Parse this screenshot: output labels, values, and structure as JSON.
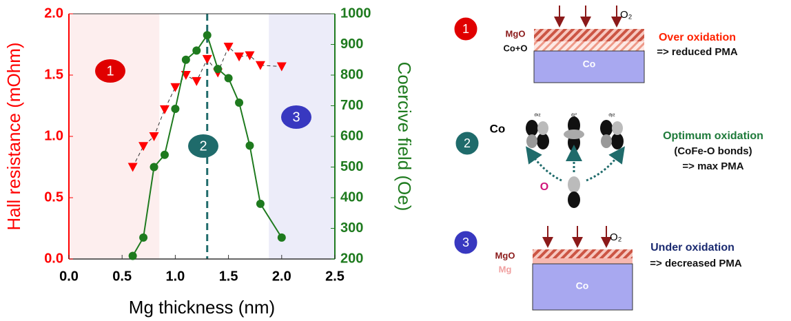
{
  "chart_data": {
    "type": "line",
    "xlabel": "Mg thickness (nm)",
    "ylabel": "Hall resistance (mOhm)",
    "y2label": "Coercive field (Oe)",
    "xlim": [
      0,
      2.5
    ],
    "xticks": [
      {
        "value": 0,
        "label": "0.0"
      },
      {
        "value": 0.5,
        "label": "0.5"
      },
      {
        "value": 1,
        "label": "1.0"
      },
      {
        "value": 1.5,
        "label": "1.5"
      },
      {
        "value": 2,
        "label": "2.0"
      },
      {
        "value": 2.5,
        "label": "2.5"
      }
    ],
    "ylim": [
      0,
      2
    ],
    "yticks": [
      {
        "value": 0,
        "label": "0.0"
      },
      {
        "value": 0.5,
        "label": "0.5"
      },
      {
        "value": 1,
        "label": "1.0"
      },
      {
        "value": 1.5,
        "label": "1.5"
      },
      {
        "value": 2,
        "label": "2.0"
      }
    ],
    "y2lim": [
      200,
      1000
    ],
    "y2ticks": [
      200,
      300,
      400,
      500,
      600,
      700,
      800,
      900,
      1000
    ],
    "series": [
      {
        "name": "Hall resistance",
        "color": "#ff0000",
        "marker": "triangle-down",
        "x": [
          0.6,
          0.7,
          0.8,
          0.9,
          1.0,
          1.1,
          1.2,
          1.3,
          1.4,
          1.5,
          1.6,
          1.7,
          1.8,
          2.0
        ],
        "values": [
          0.75,
          0.92,
          1.0,
          1.22,
          1.4,
          1.5,
          1.45,
          1.63,
          1.52,
          1.73,
          1.65,
          1.66,
          1.58,
          1.57
        ]
      },
      {
        "name": "Coercive field",
        "color": "#1e7a1e",
        "marker": "circle",
        "axis": "y2",
        "x": [
          0.6,
          0.7,
          0.8,
          0.9,
          1.0,
          1.1,
          1.2,
          1.3,
          1.4,
          1.5,
          1.6,
          1.7,
          1.8,
          2.0
        ],
        "values": [
          210,
          270,
          500,
          540,
          690,
          850,
          880,
          930,
          820,
          790,
          710,
          570,
          380,
          270
        ]
      }
    ],
    "regions": [
      {
        "xlim": [
          0,
          0.85
        ],
        "color": "#fdeeee"
      },
      {
        "xlim": [
          1.88,
          2.5
        ],
        "color": "#ececf9"
      }
    ],
    "vline": {
      "x": 1.3,
      "color": "#1f6b6b"
    },
    "annotations": [
      "1",
      "2",
      "3"
    ]
  },
  "diagram": {
    "panel1": {
      "number": "1",
      "gas": "O₂",
      "layer_top": "MgO",
      "layer_mid": "Co+O",
      "base": "Co",
      "title": "Over oxidation",
      "result": "=> reduced PMA"
    },
    "panel2": {
      "number": "2",
      "metal": "Co",
      "orbitals": [
        "dxz",
        "dz²",
        "dyz"
      ],
      "oxygen": "O",
      "title": "Optimum oxidation",
      "detail": "(CoFe-O bonds)",
      "result": "=> max PMA"
    },
    "panel3": {
      "number": "3",
      "gas": "O₂",
      "layer_top": "MgO",
      "layer_mid": "Mg",
      "base": "Co",
      "title": "Under oxidation",
      "result": "=> decreased PMA"
    }
  }
}
